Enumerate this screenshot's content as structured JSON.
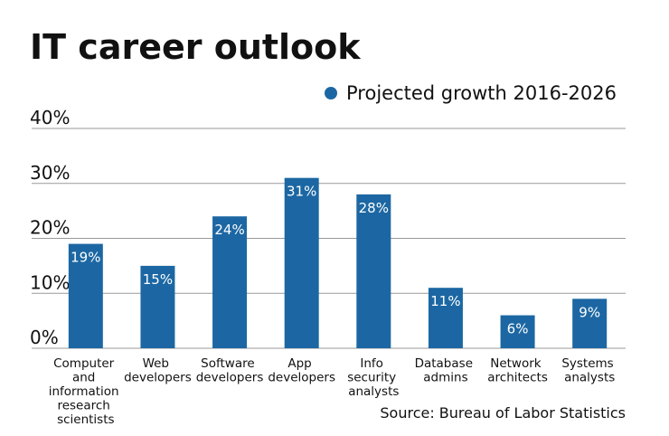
{
  "chart_data": {
    "type": "bar",
    "title": "IT career outlook",
    "categories": [
      "Computer and information research scientists",
      "Web developers",
      "Software developers",
      "App developers",
      "Info security analysts",
      "Database admins",
      "Network architects",
      "Systems analysts"
    ],
    "series": [
      {
        "name": "Projected growth 2016-2026",
        "color": "#1c67a3",
        "values": [
          19,
          15,
          24,
          31,
          28,
          11,
          6,
          9
        ],
        "value_labels": [
          "19%",
          "15%",
          "24%",
          "31%",
          "28%",
          "11%",
          "6%",
          "9%"
        ]
      }
    ],
    "ylim": [
      0,
      40
    ],
    "yticks": [
      {
        "value": 0,
        "label": "0%"
      },
      {
        "value": 10,
        "label": "10%"
      },
      {
        "value": 20,
        "label": "20%"
      },
      {
        "value": 30,
        "label": "30%"
      },
      {
        "value": 40,
        "label": "40%"
      }
    ],
    "grid": true,
    "legend": "top-right",
    "source": "Source: Bureau of Labor Statistics"
  }
}
